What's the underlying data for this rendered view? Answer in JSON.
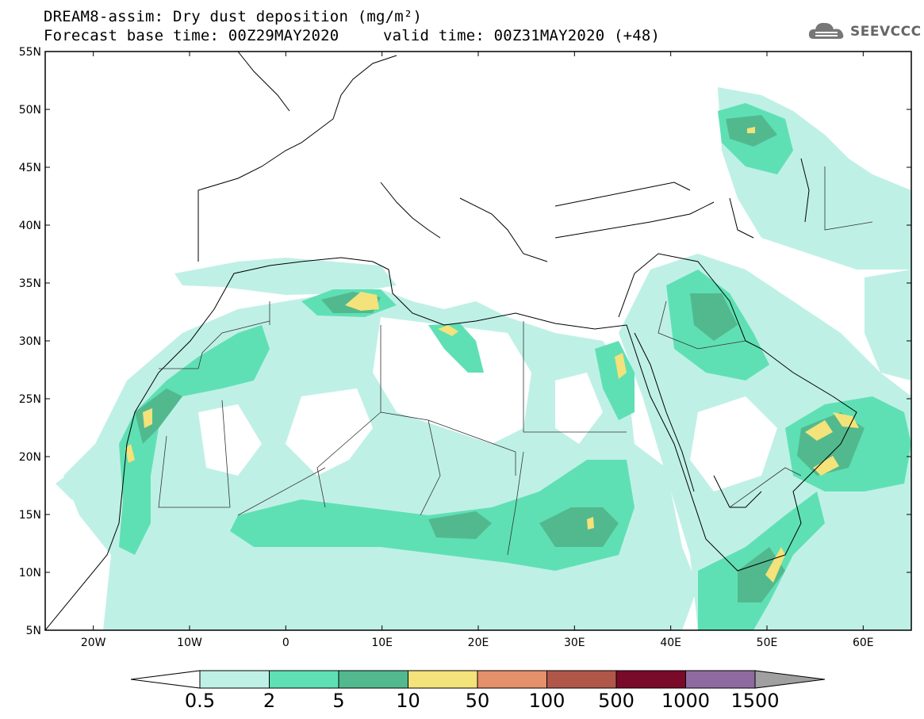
{
  "header": {
    "title_line1": "DREAM8-assim: Dry dust deposition (mg/m²)",
    "title_line2a": "Forecast base time: 00Z29MAY2020",
    "title_line2b": "valid time: 00Z31MAY2020 (+48)",
    "logo_text": "SEEVCCC",
    "logo_icon": "cloud-icon"
  },
  "map": {
    "lat_labels": [
      "55N",
      "50N",
      "45N",
      "40N",
      "35N",
      "30N",
      "25N",
      "20N",
      "15N",
      "10N",
      "5N"
    ],
    "lon_labels": [
      "20W",
      "10W",
      "0",
      "10E",
      "20E",
      "30E",
      "40E",
      "50E",
      "60E"
    ],
    "lon_range": [
      -25,
      65
    ],
    "lat_range": [
      5,
      55
    ]
  },
  "colorbar": {
    "labels": [
      "0.5",
      "2",
      "5",
      "10",
      "50",
      "100",
      "500",
      "1000",
      "1500"
    ],
    "colors": [
      "#bff0e6",
      "#5fe0b4",
      "#52b98e",
      "#f4e27a",
      "#e4906a",
      "#b0574a",
      "#7a0a2a",
      "#8e6aa0"
    ]
  }
}
